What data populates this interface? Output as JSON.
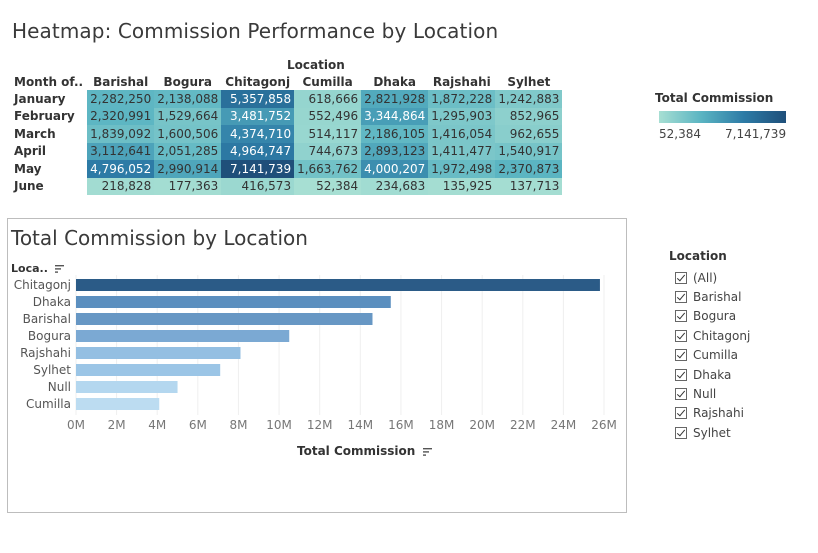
{
  "heatmap": {
    "title": "Heatmap: Commission Performance by Location",
    "column_group_label": "Location",
    "row_header": "Month of..",
    "columns": [
      "Barishal",
      "Bogura",
      "Chitagonj",
      "Cumilla",
      "Dhaka",
      "Rajshahi",
      "Sylhet"
    ],
    "rows": [
      {
        "label": "January",
        "values": [
          "2,282,250",
          "2,138,088",
          "5,357,858",
          "618,666",
          "2,821,928",
          "1,872,228",
          "1,242,883"
        ],
        "nums": [
          2282250,
          2138088,
          5357858,
          618666,
          2821928,
          1872228,
          1242883
        ]
      },
      {
        "label": "February",
        "values": [
          "2,320,991",
          "1,529,664",
          "3,481,752",
          "552,496",
          "3,344,864",
          "1,295,903",
          "852,965"
        ],
        "nums": [
          2320991,
          1529664,
          3481752,
          552496,
          3344864,
          1295903,
          852965
        ]
      },
      {
        "label": "March",
        "values": [
          "1,839,092",
          "1,600,506",
          "4,374,710",
          "514,117",
          "2,186,105",
          "1,416,054",
          "962,655"
        ],
        "nums": [
          1839092,
          1600506,
          4374710,
          514117,
          2186105,
          1416054,
          962655
        ]
      },
      {
        "label": "April",
        "values": [
          "3,112,641",
          "2,051,285",
          "4,964,747",
          "744,673",
          "2,893,123",
          "1,411,477",
          "1,540,917"
        ],
        "nums": [
          3112641,
          2051285,
          4964747,
          744673,
          2893123,
          1411477,
          1540917
        ]
      },
      {
        "label": "May",
        "values": [
          "4,796,052",
          "2,990,914",
          "7,141,739",
          "1,663,762",
          "4,000,207",
          "1,972,498",
          "2,370,873"
        ],
        "nums": [
          4796052,
          2990914,
          7141739,
          1663762,
          4000207,
          1972498,
          2370873
        ]
      },
      {
        "label": "June",
        "values": [
          "218,828",
          "177,363",
          "416,573",
          "52,384",
          "234,683",
          "135,925",
          "137,713"
        ],
        "nums": [
          218828,
          177363,
          416573,
          52384,
          234683,
          135925,
          137713
        ]
      }
    ],
    "legend": {
      "title": "Total Commission",
      "min_label": "52,384",
      "max_label": "7,141,739",
      "min": 52384,
      "max": 7141739,
      "colors": [
        "#a7dfd3",
        "#5ab4c2",
        "#2d7ba6",
        "#1f4f7a"
      ]
    }
  },
  "bar_panel": {
    "title": "Total Commission by Location",
    "axis_field": "Loca..",
    "x_title": "Total Commission"
  },
  "chart_data": {
    "type": "bar",
    "orientation": "horizontal",
    "title": "Total Commission by Location",
    "xlabel": "Total Commission",
    "ylabel": "Loca..",
    "categories": [
      "Chitagonj",
      "Dhaka",
      "Barishal",
      "Bogura",
      "Rajshahi",
      "Sylhet",
      "Null",
      "Cumilla"
    ],
    "values": [
      25800000,
      15500000,
      14600000,
      10500000,
      8100000,
      7100000,
      5000000,
      4100000
    ],
    "colors": [
      "#2b5b87",
      "#5b8fbf",
      "#6797c4",
      "#7ba9d3",
      "#94bfe2",
      "#9bc5e6",
      "#b4d7ef",
      "#bcdcf1"
    ],
    "xlim": [
      0,
      26000000
    ],
    "x_ticks": [
      "0M",
      "2M",
      "4M",
      "6M",
      "8M",
      "10M",
      "12M",
      "14M",
      "16M",
      "18M",
      "20M",
      "22M",
      "24M",
      "26M"
    ],
    "grid": true
  },
  "filter": {
    "title": "Location",
    "items": [
      "(All)",
      "Barishal",
      "Bogura",
      "Chitagonj",
      "Cumilla",
      "Dhaka",
      "Null",
      "Rajshahi",
      "Sylhet"
    ]
  }
}
